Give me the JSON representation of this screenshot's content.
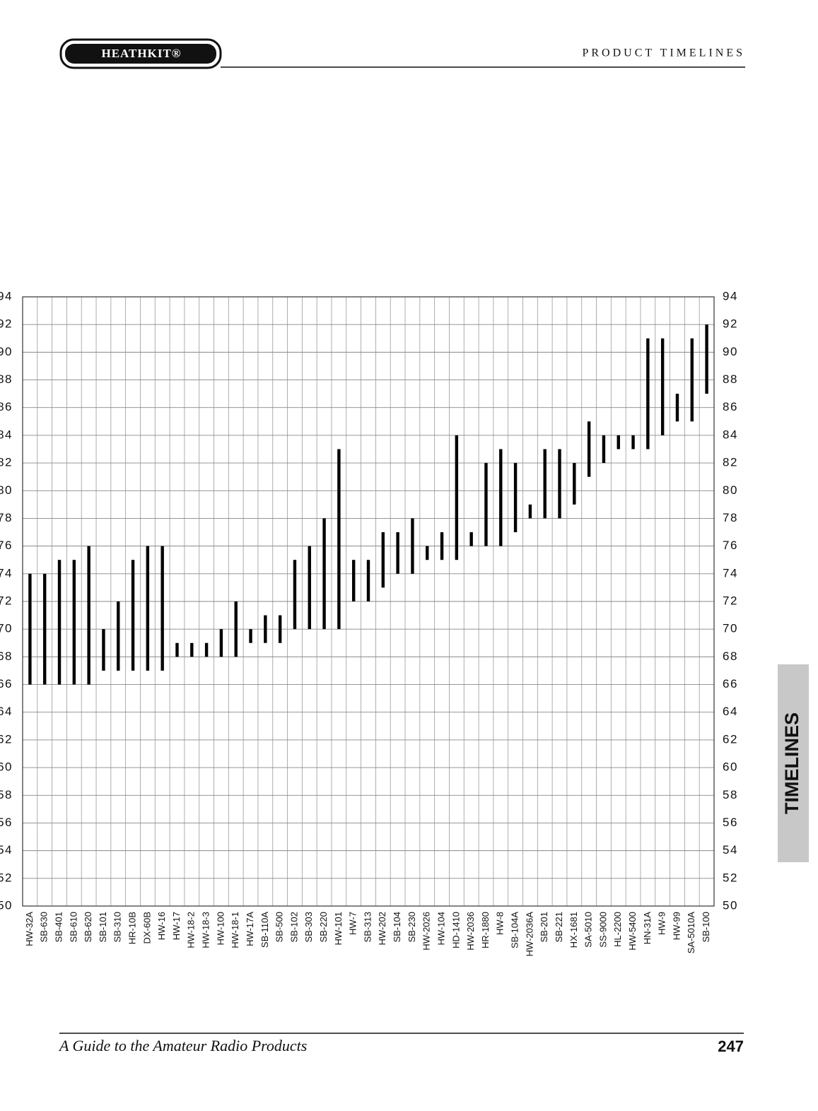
{
  "header": {
    "brand": "HEATHKIT®",
    "section": "PRODUCT TIMELINES"
  },
  "footer": {
    "title": "A Guide to the Amateur Radio Products",
    "page": "247"
  },
  "side_tab": "TIMELINES",
  "chart_data": {
    "type": "range-bar",
    "color": "#000000",
    "grid": true,
    "categories": [
      "HW-32A",
      "SB-630",
      "SB-401",
      "SB-610",
      "SB-620",
      "SB-101",
      "SB-310",
      "HR-10B",
      "DX-60B",
      "HW-16",
      "HW-17",
      "HW-18-2",
      "HW-18-3",
      "HW-100",
      "HW-18-1",
      "HW-17A",
      "SB-110A",
      "SB-500",
      "SB-102",
      "SB-303",
      "SB-220",
      "HW-101",
      "HW-7",
      "SB-313",
      "HW-202",
      "SB-104",
      "SB-230",
      "HW-2026",
      "HW-104",
      "HD-1410",
      "HW-2036",
      "HR-1880",
      "HW-8",
      "SB-104A",
      "HW-2036A",
      "SB-201",
      "SB-221",
      "HX-1681",
      "SA-5010",
      "SS-9000",
      "HL-2200",
      "HW-5400",
      "HN-31A",
      "HW-9",
      "HW-99",
      "SA-5010A",
      "SB-100"
    ],
    "low": [
      66,
      66,
      66,
      66,
      66,
      67,
      67,
      67,
      67,
      67,
      68,
      68,
      68,
      68,
      68,
      69,
      69,
      69,
      70,
      70,
      70,
      70,
      72,
      72,
      73,
      74,
      74,
      75,
      75,
      75,
      76,
      76,
      76,
      77,
      78,
      78,
      78,
      79,
      81,
      82,
      83,
      83,
      83,
      84,
      85,
      85,
      87
    ],
    "high": [
      74,
      74,
      75,
      75,
      76,
      70,
      72,
      75,
      76,
      76,
      69,
      69,
      69,
      70,
      72,
      70,
      71,
      71,
      75,
      76,
      78,
      83,
      75,
      75,
      77,
      77,
      78,
      76,
      77,
      84,
      77,
      82,
      83,
      82,
      79,
      83,
      83,
      82,
      85,
      84,
      84,
      84,
      91,
      91,
      87,
      91,
      92
    ],
    "ylim": [
      50,
      94
    ],
    "yticks": [
      50,
      52,
      54,
      56,
      58,
      60,
      62,
      64,
      66,
      68,
      70,
      72,
      74,
      76,
      78,
      80,
      82,
      84,
      86,
      88,
      90,
      92,
      94
    ]
  }
}
